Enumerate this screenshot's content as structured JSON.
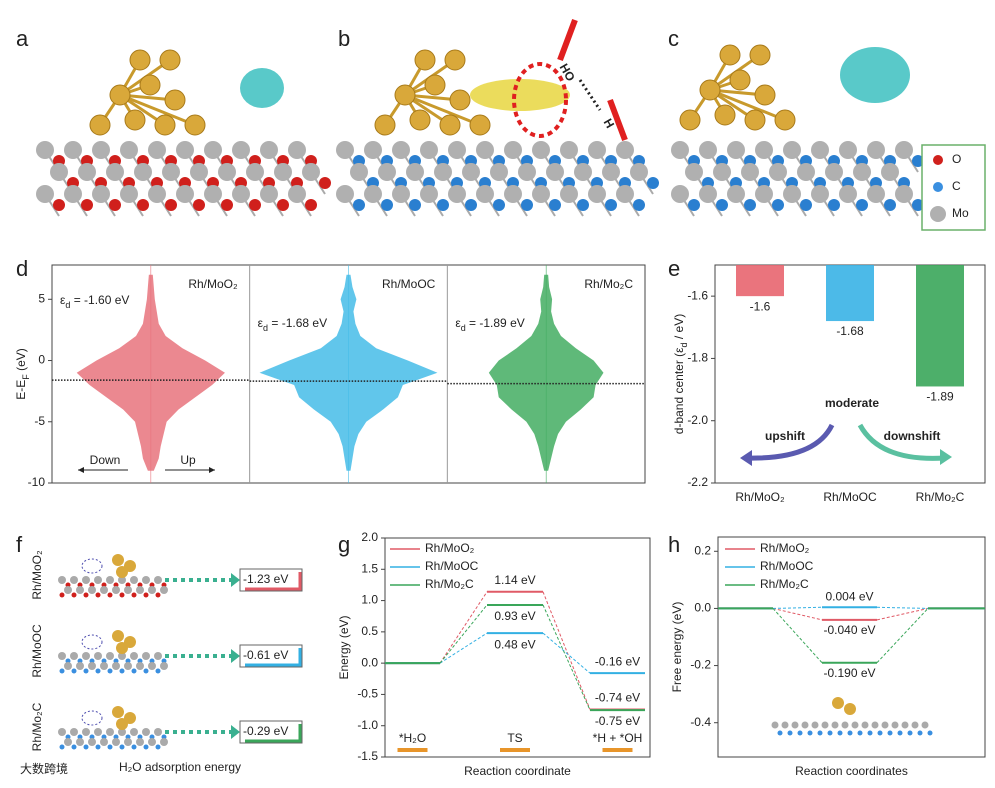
{
  "figure": {
    "panel_labels": [
      "a",
      "b",
      "c",
      "d",
      "e",
      "f",
      "g",
      "h"
    ],
    "atom_legend": [
      "O",
      "C",
      "Mo"
    ],
    "bond_label": [
      "HO",
      "H"
    ],
    "watermark": "大数跨境",
    "panel_f": {
      "structures": [
        "Rh/MoO₂",
        "Rh/MoOC",
        "Rh/Mo₂C"
      ],
      "energies": [
        "-1.23 eV",
        "-0.61 eV",
        "-0.29 eV"
      ],
      "xlabel": "H₂O adsorption energy"
    }
  },
  "chart_data": [
    {
      "type": "dos",
      "ylabel": [
        "E-E",
        "F",
        " (eV)"
      ],
      "ylim": [
        -10,
        7.8
      ],
      "yticks": [
        -10,
        -5,
        0,
        5
      ],
      "arrows": [
        "Down",
        "Up"
      ],
      "energies": [
        -9,
        -8,
        -7,
        -6,
        -5,
        -4,
        -3,
        -2,
        -1,
        0,
        1,
        2,
        3,
        4,
        5,
        6,
        7
      ],
      "series": [
        {
          "name": "Rh/MoO₂",
          "color": "#e8737d",
          "d_center": -1.6,
          "d_label": [
            "ε",
            "d",
            " = -1.60 eV"
          ],
          "density": [
            0.03,
            0.08,
            0.1,
            0.13,
            0.16,
            0.28,
            0.45,
            0.62,
            0.75,
            0.55,
            0.32,
            0.15,
            0.08,
            0.06,
            0.04,
            0.03,
            0.02
          ]
        },
        {
          "name": "Rh/MoOC",
          "color": "#45bce8",
          "d_center": -1.68,
          "d_label": [
            "ε",
            "d",
            " = -1.68 eV"
          ],
          "density": [
            0.02,
            0.04,
            0.06,
            0.1,
            0.18,
            0.35,
            0.5,
            0.55,
            0.9,
            0.6,
            0.28,
            0.12,
            0.07,
            0.05,
            0.08,
            0.04,
            0.02
          ]
        },
        {
          "name": "Rh/Mo₂C",
          "color": "#43ad62",
          "d_center": -1.89,
          "d_label": [
            "ε",
            "d",
            " = -1.89 eV"
          ],
          "density": [
            0.02,
            0.05,
            0.08,
            0.12,
            0.2,
            0.35,
            0.48,
            0.5,
            0.58,
            0.48,
            0.3,
            0.15,
            0.08,
            0.05,
            0.06,
            0.03,
            0.02
          ]
        }
      ]
    },
    {
      "type": "bar",
      "ylabel": [
        "d-band center (ε",
        "d",
        " / eV)"
      ],
      "categories": [
        "Rh/MoO₂",
        "Rh/MoOC",
        "Rh/Mo₂C"
      ],
      "values": [
        -1.6,
        -1.68,
        -1.89
      ],
      "colors": [
        "#e8656f",
        "#39b3e6",
        "#3aa65a"
      ],
      "ylim": [
        -2.2,
        -1.5
      ],
      "yticks": [
        -2.2,
        {
          "value": -2.0,
          "label": "-2.0"
        },
        -1.8,
        -1.6
      ],
      "annotations": [
        "moderate",
        "upshift",
        "downshift"
      ]
    },
    {
      "type": "energy",
      "xlabel": "Reaction coordinate",
      "ylabel": "Energy (eV)",
      "categories": [
        "*H₂O",
        "TS",
        "*H + *OH"
      ],
      "ylim": [
        -1.5,
        2.0
      ],
      "yticks": [
        -1.5,
        {
          "value": -1.0,
          "label": "-1.0"
        },
        -0.5,
        {
          "value": 0.0,
          "label": "0.0"
        },
        0.5,
        {
          "value": 1.0,
          "label": "1.0"
        },
        1.5,
        {
          "value": 2.0,
          "label": "2.0"
        }
      ],
      "series": [
        {
          "name": "Rh/MoO₂",
          "color": "#e05a66",
          "values": [
            0,
            1.14,
            -0.74
          ],
          "value_labels": [
            null,
            "1.14 eV",
            "-0.74 eV"
          ]
        },
        {
          "name": "Rh/MoOC",
          "color": "#33b0e3",
          "values": [
            0,
            0.48,
            -0.16
          ],
          "value_labels": [
            null,
            "0.48 eV",
            "-0.16 eV"
          ]
        },
        {
          "name": "Rh/Mo₂C",
          "color": "#3aa65a",
          "values": [
            0,
            0.93,
            -0.75
          ],
          "value_labels": [
            null,
            "0.93 eV",
            "-0.75 eV"
          ]
        }
      ]
    },
    {
      "type": "energy",
      "xlabel": "Reaction coordinates",
      "ylabel": "Free energy (eV)",
      "categories": [
        null,
        null,
        null
      ],
      "ylim": [
        -0.52,
        0.25
      ],
      "yticks": [
        -0.4,
        -0.2,
        {
          "value": 0.0,
          "label": "0.0"
        },
        0.2
      ],
      "series": [
        {
          "name": "Rh/MoO₂",
          "color": "#e05a66",
          "values": [
            0,
            -0.04,
            0
          ],
          "value_labels": [
            null,
            "-0.040 eV",
            null
          ]
        },
        {
          "name": "Rh/MoOC",
          "color": "#33b0e3",
          "values": [
            0,
            0.004,
            0
          ],
          "value_labels": [
            null,
            "0.004 eV",
            null
          ]
        },
        {
          "name": "Rh/Mo₂C",
          "color": "#3aa65a",
          "values": [
            0,
            -0.19,
            0
          ],
          "value_labels": [
            null,
            "-0.190 eV",
            null
          ]
        }
      ]
    }
  ]
}
